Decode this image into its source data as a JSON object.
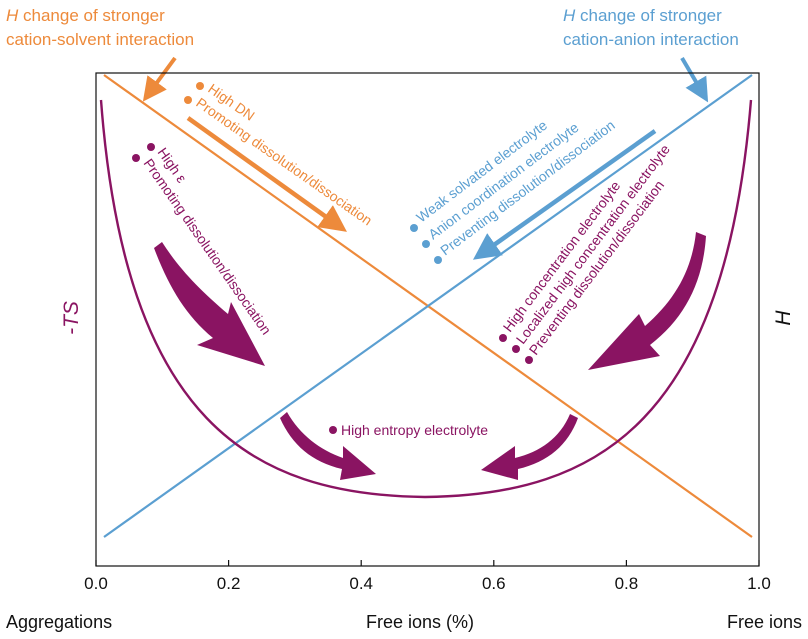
{
  "colors": {
    "orange": "#ED8A3B",
    "blue": "#5B9FD1",
    "purple": "#8A1462",
    "axis": "#111111"
  },
  "header": {
    "left_title_var": "H",
    "left_title_rest": " change of stronger",
    "left_title_line2": "cation-solvent interaction",
    "right_title_var": "H",
    "right_title_rest": " change of stronger",
    "right_title_line2": "cation-anion interaction"
  },
  "axes": {
    "y_left_label": "-TS",
    "y_right_label": "H",
    "x_label": "Free ions (%)",
    "x_left_end_label": "Aggregations",
    "x_right_end_label": "Free ions",
    "x_ticks": [
      "0.0",
      "0.2",
      "0.4",
      "0.6",
      "0.8",
      "1.0"
    ]
  },
  "annotations": {
    "orange_group": [
      "High DN",
      "Promoting dissolution/dissociation"
    ],
    "purple_left_group": [
      "High ε",
      "Promoting dissolution/dissociation"
    ],
    "blue_group": [
      "Weak solvated electrolyte",
      "Anion coordination electrolyte",
      "Preventing dissolution/dissociation"
    ],
    "purple_right_group": [
      "High concentration electrolyte",
      "Localized high concentration electrolyte",
      "Preventing dissolution/dissociation"
    ],
    "center_label": "High entropy electrolyte"
  }
}
